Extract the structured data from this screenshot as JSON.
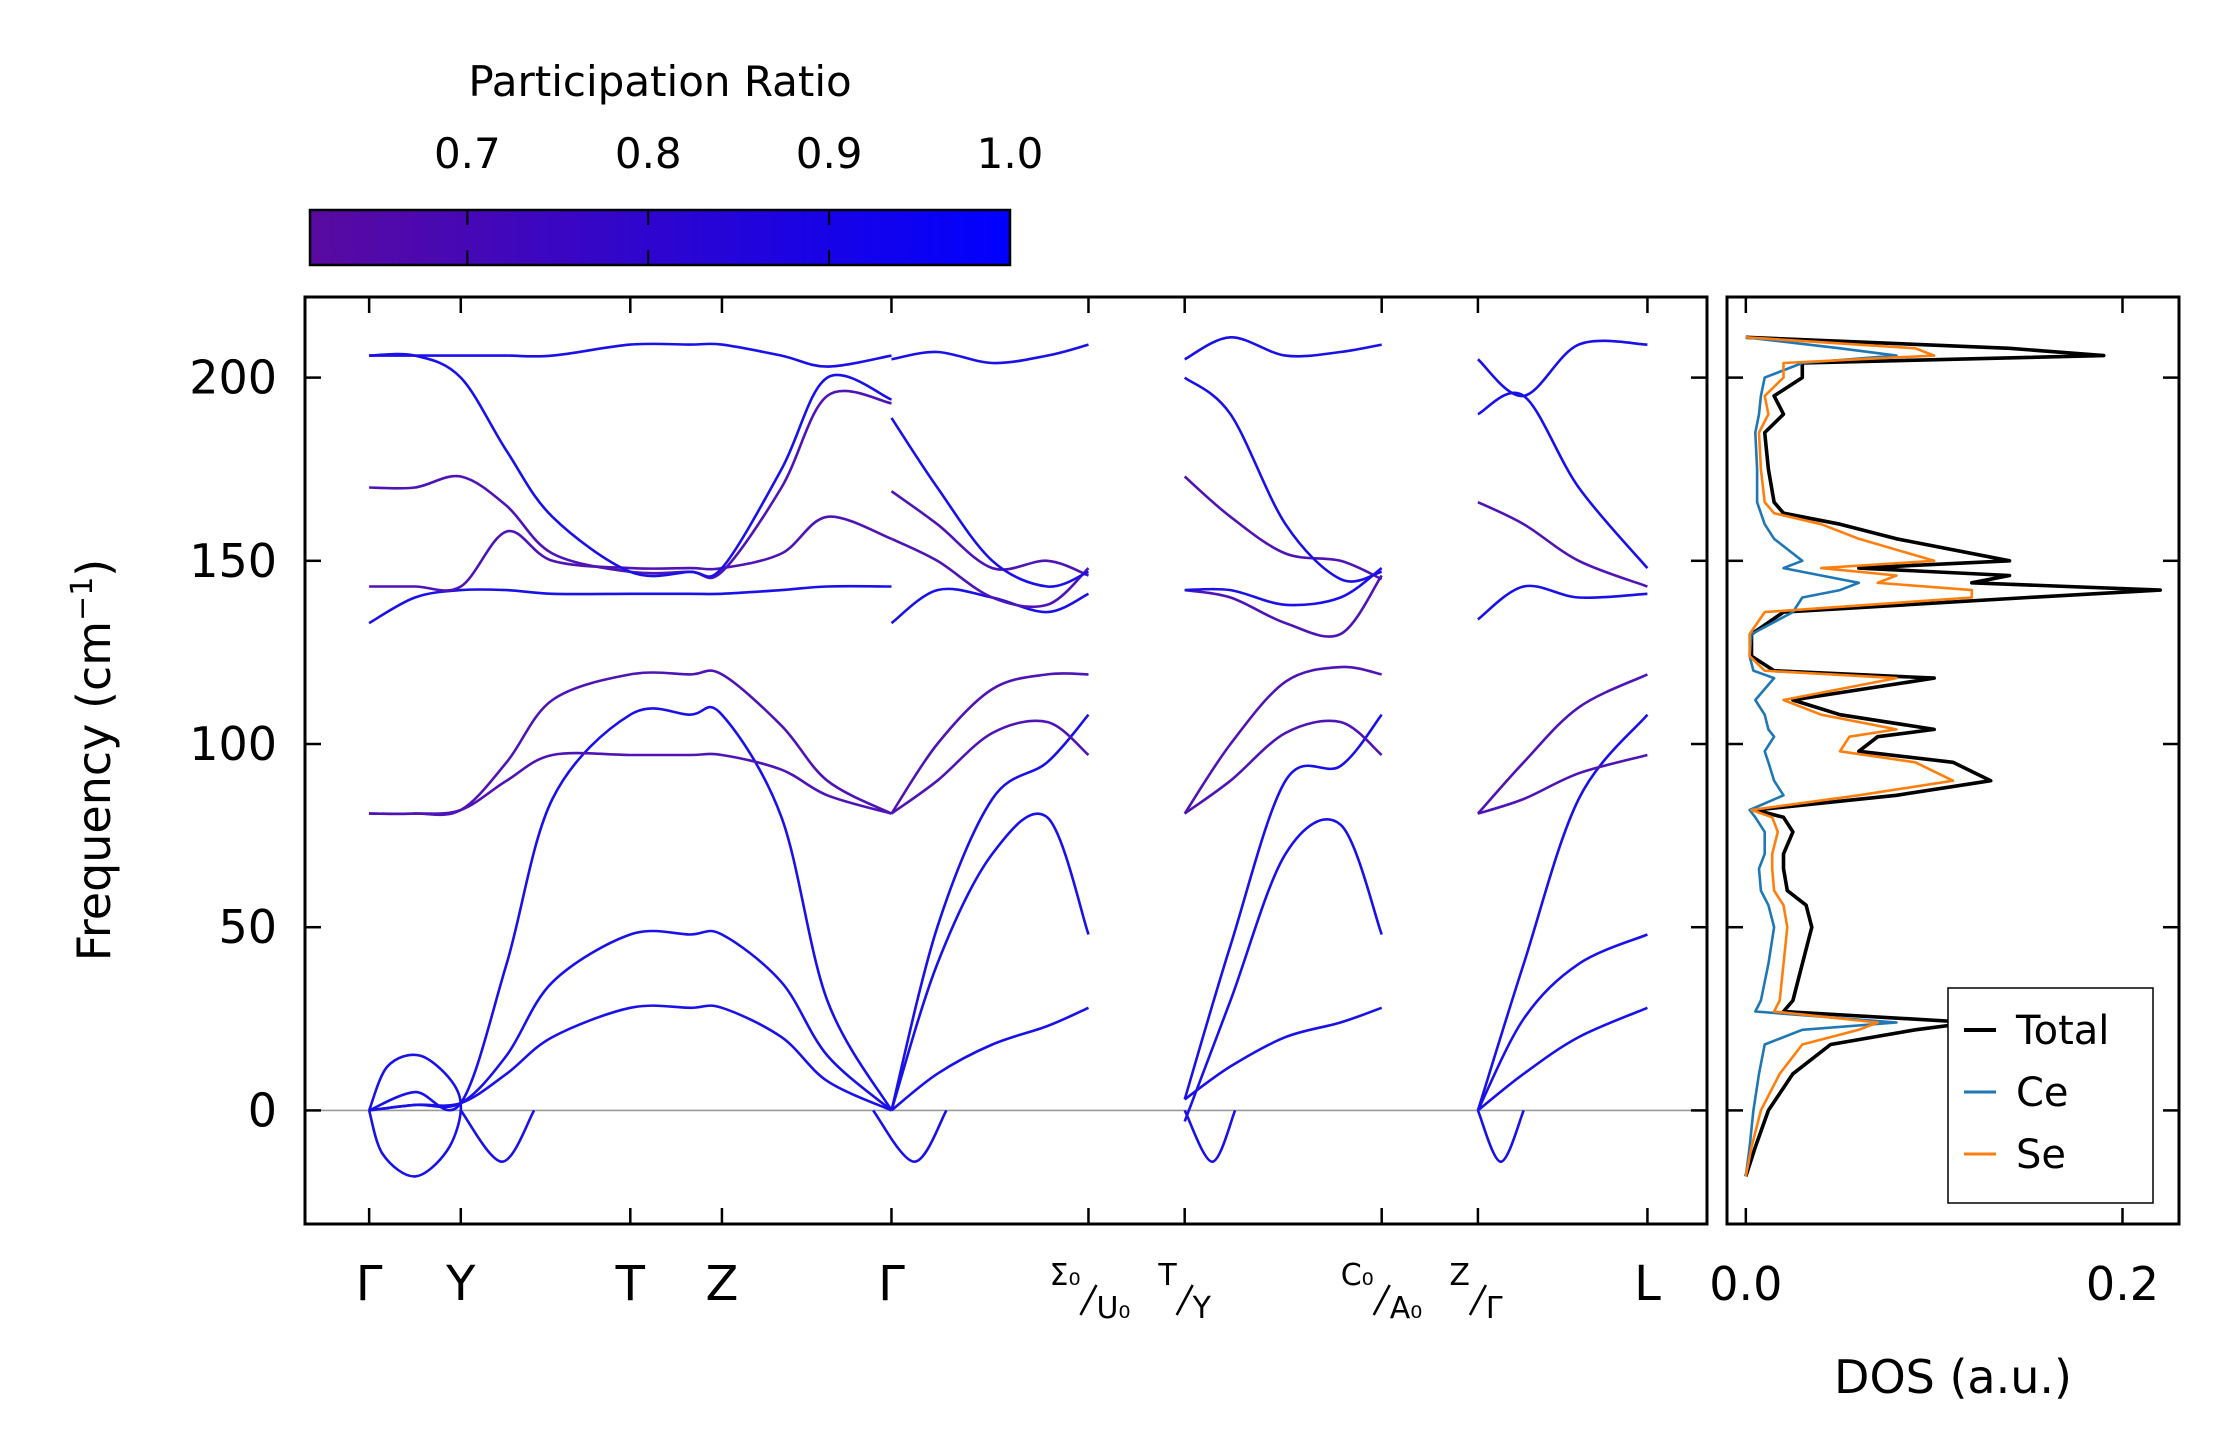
{
  "colors": {
    "band": "#1a10e8",
    "band_mixed": "#4e14b6",
    "total": "#000000",
    "ce": "#1f77b4",
    "se": "#ff7f0e",
    "zero_line": "#9a9a9a",
    "cbar_low": "#5a0aa0",
    "cbar_high": "#0000ff"
  },
  "colorbar": {
    "title": "Participation Ratio",
    "ticks": [
      "0.7",
      "0.8",
      "0.9",
      "1.0"
    ],
    "range": [
      0.613,
      1.0
    ]
  },
  "chart_data": [
    {
      "type": "line",
      "name": "phonon-dispersion",
      "ylabel": "Frequency (cm⁻¹)",
      "ylabel_base": "Frequency (cm",
      "ylabel_sup": "−1",
      "ylabel_close": ")",
      "ylim": [
        -31,
        222
      ],
      "yticks": [
        "0",
        "50",
        "100",
        "150",
        "200"
      ],
      "q_points": [
        {
          "label": "Γ",
          "x": 0.0
        },
        {
          "label": "Y",
          "x": 1.0
        },
        {
          "label": "T",
          "x": 2.85
        },
        {
          "label": "Z",
          "x": 3.85
        },
        {
          "label": "Γ",
          "x": 5.7
        }
      ],
      "split_points": [
        {
          "top": "Σ₀",
          "bottom": "U₀",
          "x": 7.85
        },
        {
          "top": "T",
          "bottom": "Y",
          "x": 8.9
        },
        {
          "top": "C₀",
          "bottom": "A₀",
          "x": 11.05
        },
        {
          "top": "Z",
          "bottom": "Γ",
          "x": 12.1
        },
        {
          "top": "L",
          "bottom": "",
          "x": 13.95
        }
      ],
      "xlim": [
        -0.7,
        14.6
      ],
      "segments": [
        {
          "name": "gamma-y-t-z-gamma",
          "x": [
            0.0,
            0.5,
            1.0,
            1.5,
            2.0,
            2.85,
            3.5,
            3.85,
            4.5,
            5.0,
            5.7
          ],
          "bands": [
            {
              "color": "band",
              "values": [
                0.0,
                1.5,
                2.0,
                15.0,
                35.0,
                48.0,
                48.0,
                48.0,
                35.0,
                15.0,
                0.0
              ]
            },
            {
              "color": "band",
              "values": [
                0.0,
                1.5,
                2.0,
                10.0,
                20.0,
                28.0,
                28.0,
                28.0,
                20.0,
                8.0,
                0.0
              ]
            },
            {
              "color": "band",
              "values": [
                0.0,
                5.0,
                2.0,
                40.0,
                85.0,
                108.0,
                108.0,
                108.0,
                80.0,
                30.0,
                0.0
              ]
            },
            {
              "color": "band_mixed",
              "values": [
                81.0,
                81.0,
                82.0,
                90.0,
                97.0,
                97.0,
                97.0,
                97.0,
                93.0,
                86.0,
                81.0
              ]
            },
            {
              "color": "band_mixed",
              "values": [
                81.0,
                81.0,
                82.0,
                95.0,
                112.0,
                119.0,
                119.0,
                119.0,
                105.0,
                90.0,
                81.0
              ]
            },
            {
              "color": "band",
              "values": [
                133.0,
                140.0,
                142.0,
                142.0,
                141.0,
                141.0,
                141.0,
                141.0,
                142.0,
                143.0,
                143.0
              ]
            },
            {
              "color": "band_mixed",
              "values": [
                143.0,
                143.0,
                143.0,
                158.0,
                150.0,
                148.0,
                148.0,
                148.0,
                152.0,
                162.0,
                156.0
              ]
            },
            {
              "color": "band_mixed",
              "values": [
                170.0,
                170.0,
                173.0,
                165.0,
                152.0,
                147.0,
                147.0,
                147.0,
                170.0,
                195.0,
                193.0
              ]
            },
            {
              "color": "band",
              "values": [
                206.0,
                206.0,
                200.0,
                180.0,
                162.0,
                147.0,
                147.0,
                148.0,
                175.0,
                200.0,
                194.0
              ]
            },
            {
              "color": "band",
              "values": [
                206.0,
                206.0,
                206.0,
                206.0,
                206.0,
                209.0,
                209.0,
                209.0,
                206.0,
                203.0,
                206.0
              ]
            }
          ]
        },
        {
          "name": "gamma-sigma0",
          "x": [
            5.7,
            6.2,
            6.8,
            7.4,
            7.85
          ],
          "bands": [
            {
              "color": "band",
              "values": [
                0.0,
                10.0,
                18.0,
                23.0,
                28.0
              ]
            },
            {
              "color": "band",
              "values": [
                0.0,
                40.0,
                70.0,
                80.0,
                48.0
              ]
            },
            {
              "color": "band",
              "values": [
                0.0,
                50.0,
                85.0,
                95.0,
                108.0
              ]
            },
            {
              "color": "band_mixed",
              "values": [
                81.0,
                90.0,
                103.0,
                106.0,
                97.0
              ]
            },
            {
              "color": "band_mixed",
              "values": [
                81.0,
                100.0,
                115.0,
                119.0,
                119.0
              ]
            },
            {
              "color": "band",
              "values": [
                133.0,
                142.0,
                140.0,
                136.0,
                141.0
              ]
            },
            {
              "color": "band_mixed",
              "values": [
                156.0,
                150.0,
                140.0,
                138.0,
                148.0
              ]
            },
            {
              "color": "band_mixed",
              "values": [
                169.0,
                160.0,
                148.0,
                150.0,
                146.0
              ]
            },
            {
              "color": "band",
              "values": [
                189.0,
                170.0,
                150.0,
                143.0,
                147.0
              ]
            },
            {
              "color": "band",
              "values": [
                205.0,
                207.0,
                204.0,
                206.0,
                209.0
              ]
            }
          ]
        },
        {
          "name": "t-c0",
          "x": [
            8.9,
            9.4,
            10.0,
            10.6,
            11.05
          ],
          "bands": [
            {
              "color": "band",
              "values": [
                3.0,
                12.0,
                20.0,
                24.0,
                28.0
              ]
            },
            {
              "color": "band",
              "values": [
                -3.0,
                30.0,
                70.0,
                78.0,
                48.0
              ]
            },
            {
              "color": "band",
              "values": [
                3.0,
                45.0,
                90.0,
                94.0,
                108.0
              ]
            },
            {
              "color": "band_mixed",
              "values": [
                81.0,
                90.0,
                103.0,
                106.0,
                97.0
              ]
            },
            {
              "color": "band_mixed",
              "values": [
                81.0,
                100.0,
                117.0,
                121.0,
                119.0
              ]
            },
            {
              "color": "band_mixed",
              "values": [
                142.0,
                140.0,
                133.0,
                130.0,
                146.0
              ]
            },
            {
              "color": "band",
              "values": [
                142.0,
                142.0,
                138.0,
                140.0,
                148.0
              ]
            },
            {
              "color": "band_mixed",
              "values": [
                173.0,
                162.0,
                152.0,
                150.0,
                145.0
              ]
            },
            {
              "color": "band",
              "values": [
                200.0,
                190.0,
                160.0,
                145.0,
                147.0
              ]
            },
            {
              "color": "band",
              "values": [
                205.0,
                211.0,
                206.0,
                207.0,
                209.0
              ]
            }
          ]
        },
        {
          "name": "z-l",
          "x": [
            12.1,
            12.6,
            13.2,
            13.95
          ],
          "bands": [
            {
              "color": "band",
              "values": [
                0.0,
                10.0,
                20.0,
                28.0
              ]
            },
            {
              "color": "band",
              "values": [
                0.0,
                25.0,
                40.0,
                48.0
              ]
            },
            {
              "color": "band",
              "values": [
                0.0,
                40.0,
                85.0,
                108.0
              ]
            },
            {
              "color": "band_mixed",
              "values": [
                81.0,
                85.0,
                92.0,
                97.0
              ]
            },
            {
              "color": "band_mixed",
              "values": [
                81.0,
                95.0,
                110.0,
                119.0
              ]
            },
            {
              "color": "band",
              "values": [
                134.0,
                143.0,
                140.0,
                141.0
              ]
            },
            {
              "color": "band_mixed",
              "values": [
                166.0,
                160.0,
                150.0,
                143.0
              ]
            },
            {
              "color": "band",
              "values": [
                190.0,
                195.0,
                170.0,
                148.0
              ]
            },
            {
              "color": "band",
              "values": [
                205.0,
                195.0,
                209.0,
                209.0
              ]
            }
          ]
        }
      ]
    },
    {
      "type": "line",
      "name": "density-of-states",
      "xlabel": "DOS (a.u.)",
      "xlim": [
        -0.01,
        0.23
      ],
      "xticks": [
        "0.0",
        "0.2"
      ],
      "xtick_values": [
        0.0,
        0.2
      ],
      "legend": [
        "Total",
        "Ce",
        "Se"
      ],
      "legend_loc": "lower-right",
      "y": [
        -18,
        -10,
        0,
        10,
        18,
        22,
        24,
        27,
        30,
        40,
        50,
        56,
        60,
        66,
        70,
        76,
        80,
        82,
        86,
        90,
        95,
        98,
        102,
        104,
        108,
        112,
        118,
        120,
        124,
        130,
        136,
        140,
        142,
        144,
        146,
        148,
        150,
        156,
        160,
        163,
        166,
        175,
        185,
        190,
        195,
        200,
        204,
        206,
        208,
        211
      ],
      "series": [
        {
          "name": "Total",
          "color": "total",
          "values": [
            0.0,
            0.005,
            0.012,
            0.025,
            0.045,
            0.09,
            0.12,
            0.02,
            0.025,
            0.03,
            0.035,
            0.032,
            0.022,
            0.02,
            0.02,
            0.025,
            0.02,
            0.005,
            0.08,
            0.13,
            0.11,
            0.06,
            0.07,
            0.1,
            0.05,
            0.025,
            0.1,
            0.015,
            0.003,
            0.003,
            0.02,
            0.15,
            0.22,
            0.12,
            0.14,
            0.06,
            0.14,
            0.08,
            0.05,
            0.02,
            0.015,
            0.012,
            0.01,
            0.02,
            0.015,
            0.03,
            0.03,
            0.19,
            0.14,
            0.0
          ]
        },
        {
          "name": "Ce",
          "color": "ce",
          "values": [
            0.0,
            0.002,
            0.004,
            0.007,
            0.01,
            0.03,
            0.08,
            0.005,
            0.008,
            0.012,
            0.015,
            0.012,
            0.008,
            0.007,
            0.01,
            0.01,
            0.005,
            0.002,
            0.02,
            0.015,
            0.012,
            0.01,
            0.015,
            0.012,
            0.01,
            0.005,
            0.015,
            0.004,
            0.002,
            0.003,
            0.025,
            0.03,
            0.05,
            0.06,
            0.04,
            0.02,
            0.03,
            0.015,
            0.01,
            0.008,
            0.006,
            0.006,
            0.005,
            0.007,
            0.008,
            0.01,
            0.03,
            0.08,
            0.05,
            0.0
          ]
        },
        {
          "name": "Se",
          "color": "se",
          "values": [
            0.0,
            0.003,
            0.008,
            0.018,
            0.03,
            0.06,
            0.07,
            0.015,
            0.018,
            0.02,
            0.022,
            0.02,
            0.015,
            0.014,
            0.014,
            0.017,
            0.014,
            0.003,
            0.06,
            0.11,
            0.09,
            0.05,
            0.055,
            0.08,
            0.04,
            0.02,
            0.08,
            0.01,
            0.002,
            0.002,
            0.01,
            0.12,
            0.12,
            0.07,
            0.08,
            0.04,
            0.1,
            0.06,
            0.04,
            0.015,
            0.01,
            0.008,
            0.007,
            0.012,
            0.01,
            0.02,
            0.02,
            0.1,
            0.09,
            0.0
          ]
        }
      ]
    }
  ]
}
